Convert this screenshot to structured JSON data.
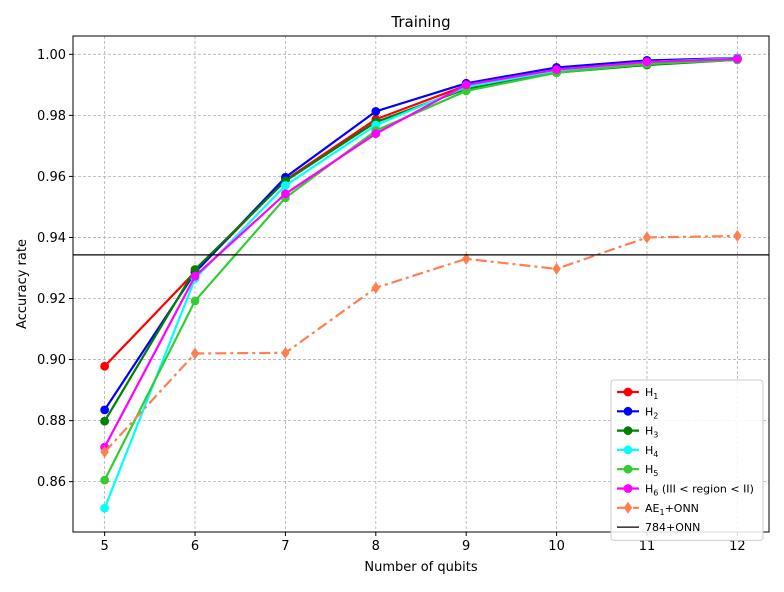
{
  "chart_data": {
    "type": "line",
    "title": "Training",
    "xlabel": "Number of qubits",
    "ylabel": "Accuracy rate",
    "x": [
      5,
      6,
      7,
      8,
      9,
      10,
      11,
      12
    ],
    "xlim": [
      4.65,
      12.35
    ],
    "ylim": [
      0.8435,
      1.006
    ],
    "xticks": [
      "5",
      "6",
      "7",
      "8",
      "9",
      "10",
      "11",
      "12"
    ],
    "yticks": [
      "0.86",
      "0.88",
      "0.90",
      "0.92",
      "0.94",
      "0.96",
      "0.98",
      "1.00"
    ],
    "grid": true,
    "legend_position": "lower-right",
    "series": [
      {
        "name": "H",
        "sub": "1",
        "suffix": "",
        "color": "#ff0000",
        "marker": "circle",
        "style": "solid",
        "values": [
          0.8978,
          0.9287,
          0.9588,
          0.9787,
          0.9898,
          0.9945,
          0.997,
          0.9985
        ]
      },
      {
        "name": "H",
        "sub": "2",
        "suffix": "",
        "color": "#0000ff",
        "marker": "circle",
        "style": "solid",
        "values": [
          0.8835,
          0.9285,
          0.9597,
          0.9813,
          0.9905,
          0.9957,
          0.998,
          0.9988
        ]
      },
      {
        "name": "H",
        "sub": "3",
        "suffix": "",
        "color": "#008000",
        "marker": "circle",
        "style": "solid",
        "values": [
          0.8798,
          0.9295,
          0.9585,
          0.9778,
          0.9887,
          0.994,
          0.9965,
          0.9982
        ]
      },
      {
        "name": "H",
        "sub": "4",
        "suffix": "",
        "color": "#00ffff",
        "marker": "circle",
        "style": "solid",
        "values": [
          0.8513,
          0.9265,
          0.957,
          0.9768,
          0.9893,
          0.9947,
          0.9975,
          0.9987
        ]
      },
      {
        "name": "H",
        "sub": "5",
        "suffix": "",
        "color": "#32cd32",
        "marker": "circle",
        "style": "solid",
        "values": [
          0.8605,
          0.9192,
          0.953,
          0.975,
          0.988,
          0.994,
          0.9968,
          0.9982
        ]
      },
      {
        "name": "H",
        "sub": "6",
        "suffix": " (III < region < II)",
        "color": "#ff00ff",
        "marker": "circle",
        "style": "solid",
        "values": [
          0.8713,
          0.9273,
          0.9543,
          0.974,
          0.99,
          0.995,
          0.9975,
          0.9985
        ]
      },
      {
        "name": "AE",
        "sub": "1",
        "suffix": "+ONN",
        "color": "#ff7f50",
        "marker": "diamond",
        "style": "dashdot",
        "values": [
          0.8697,
          0.902,
          0.9022,
          0.9235,
          0.933,
          0.9297,
          0.94,
          0.9405
        ]
      }
    ],
    "hline": {
      "name": "784+ONN",
      "value": 0.9343,
      "color": "#000000"
    }
  }
}
